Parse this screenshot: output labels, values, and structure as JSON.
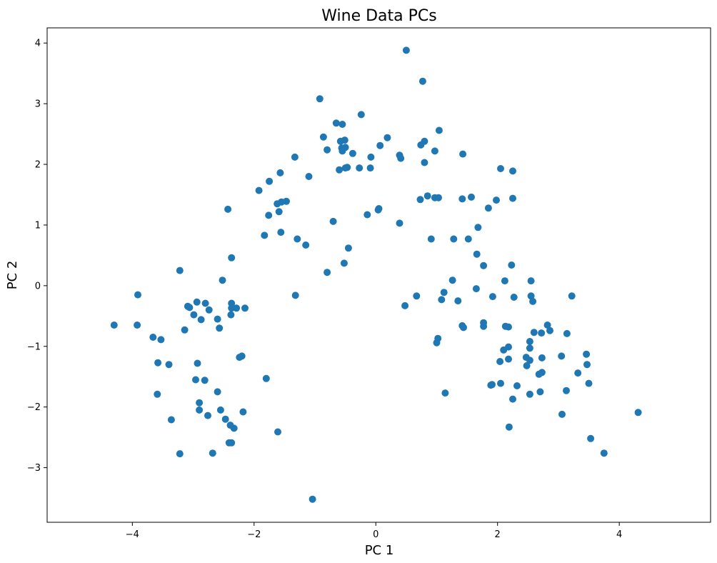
{
  "chart_data": {
    "type": "scatter",
    "title": "Wine Data PCs",
    "xlabel": "PC 1",
    "ylabel": "PC 2",
    "xlim": [
      -5.4,
      5.5
    ],
    "ylim": [
      -3.9,
      4.25
    ],
    "xticks": [
      -4,
      -2,
      0,
      2,
      4
    ],
    "yticks": [
      -3,
      -2,
      -1,
      0,
      1,
      2,
      3,
      4
    ],
    "grid": false,
    "marker_color": "#1f77b4",
    "points": [
      {
        "x": 0.5,
        "y": 3.88
      },
      {
        "x": 0.77,
        "y": 3.37
      },
      {
        "x": -0.92,
        "y": 3.08
      },
      {
        "x": -0.24,
        "y": 2.82
      },
      {
        "x": -0.65,
        "y": 2.68
      },
      {
        "x": -0.55,
        "y": 2.66
      },
      {
        "x": 1.04,
        "y": 2.56
      },
      {
        "x": -0.86,
        "y": 2.45
      },
      {
        "x": 0.19,
        "y": 2.44
      },
      {
        "x": -0.51,
        "y": 2.4
      },
      {
        "x": -0.58,
        "y": 2.38
      },
      {
        "x": 0.8,
        "y": 2.38
      },
      {
        "x": 0.74,
        "y": 2.32
      },
      {
        "x": 0.07,
        "y": 2.31
      },
      {
        "x": -0.5,
        "y": 2.28
      },
      {
        "x": -0.56,
        "y": 2.27
      },
      {
        "x": -0.8,
        "y": 2.24
      },
      {
        "x": -0.55,
        "y": 2.22
      },
      {
        "x": 0.97,
        "y": 2.22
      },
      {
        "x": -0.38,
        "y": 2.18
      },
      {
        "x": 1.43,
        "y": 2.17
      },
      {
        "x": 0.39,
        "y": 2.15
      },
      {
        "x": -1.33,
        "y": 2.12
      },
      {
        "x": -0.08,
        "y": 2.12
      },
      {
        "x": 0.41,
        "y": 2.1
      },
      {
        "x": 0.8,
        "y": 2.03
      },
      {
        "x": -0.47,
        "y": 1.95
      },
      {
        "x": -0.5,
        "y": 1.94
      },
      {
        "x": -0.27,
        "y": 1.94
      },
      {
        "x": -0.09,
        "y": 1.94
      },
      {
        "x": 2.05,
        "y": 1.93
      },
      {
        "x": -0.6,
        "y": 1.91
      },
      {
        "x": 2.25,
        "y": 1.89
      },
      {
        "x": -1.57,
        "y": 1.86
      },
      {
        "x": -1.1,
        "y": 1.8
      },
      {
        "x": -1.75,
        "y": 1.72
      },
      {
        "x": -1.92,
        "y": 1.57
      },
      {
        "x": 0.85,
        "y": 1.48
      },
      {
        "x": 1.57,
        "y": 1.46
      },
      {
        "x": 0.97,
        "y": 1.45
      },
      {
        "x": 1.03,
        "y": 1.45
      },
      {
        "x": 2.25,
        "y": 1.44
      },
      {
        "x": 1.42,
        "y": 1.43
      },
      {
        "x": 0.73,
        "y": 1.42
      },
      {
        "x": 1.98,
        "y": 1.41
      },
      {
        "x": -1.47,
        "y": 1.39
      },
      {
        "x": -1.55,
        "y": 1.38
      },
      {
        "x": -1.62,
        "y": 1.35
      },
      {
        "x": 1.85,
        "y": 1.28
      },
      {
        "x": -2.43,
        "y": 1.26
      },
      {
        "x": 0.05,
        "y": 1.27
      },
      {
        "x": 0.04,
        "y": 1.25
      },
      {
        "x": -1.59,
        "y": 1.22
      },
      {
        "x": -0.14,
        "y": 1.17
      },
      {
        "x": -1.76,
        "y": 1.16
      },
      {
        "x": -0.7,
        "y": 1.06
      },
      {
        "x": 0.39,
        "y": 1.03
      },
      {
        "x": 1.68,
        "y": 0.96
      },
      {
        "x": -1.56,
        "y": 0.88
      },
      {
        "x": -1.83,
        "y": 0.83
      },
      {
        "x": -1.29,
        "y": 0.77
      },
      {
        "x": 0.91,
        "y": 0.77
      },
      {
        "x": 1.28,
        "y": 0.77
      },
      {
        "x": 1.52,
        "y": 0.77
      },
      {
        "x": -1.15,
        "y": 0.67
      },
      {
        "x": -0.45,
        "y": 0.62
      },
      {
        "x": 1.66,
        "y": 0.52
      },
      {
        "x": -2.37,
        "y": 0.46
      },
      {
        "x": -0.52,
        "y": 0.37
      },
      {
        "x": 1.77,
        "y": 0.33
      },
      {
        "x": 2.23,
        "y": 0.34
      },
      {
        "x": -3.22,
        "y": 0.25
      },
      {
        "x": -0.8,
        "y": 0.22
      },
      {
        "x": -2.52,
        "y": 0.09
      },
      {
        "x": 1.26,
        "y": 0.09
      },
      {
        "x": 2.12,
        "y": 0.08
      },
      {
        "x": 2.55,
        "y": 0.08
      },
      {
        "x": 1.65,
        "y": -0.05
      },
      {
        "x": 1.12,
        "y": -0.11
      },
      {
        "x": -3.91,
        "y": -0.15
      },
      {
        "x": -1.32,
        "y": -0.16
      },
      {
        "x": 0.67,
        "y": -0.17
      },
      {
        "x": 1.92,
        "y": -0.18
      },
      {
        "x": 2.55,
        "y": -0.17
      },
      {
        "x": 3.22,
        "y": -0.17
      },
      {
        "x": 2.27,
        "y": -0.19
      },
      {
        "x": 1.08,
        "y": -0.23
      },
      {
        "x": 1.35,
        "y": -0.25
      },
      {
        "x": 2.58,
        "y": -0.26
      },
      {
        "x": -2.94,
        "y": -0.27
      },
      {
        "x": -2.37,
        "y": -0.29
      },
      {
        "x": -2.8,
        "y": -0.29
      },
      {
        "x": 0.48,
        "y": -0.33
      },
      {
        "x": -3.09,
        "y": -0.34
      },
      {
        "x": -3.06,
        "y": -0.36
      },
      {
        "x": -2.29,
        "y": -0.37
      },
      {
        "x": -2.15,
        "y": -0.37
      },
      {
        "x": -2.37,
        "y": -0.37
      },
      {
        "x": -2.74,
        "y": -0.4
      },
      {
        "x": -2.38,
        "y": -0.48
      },
      {
        "x": -2.99,
        "y": -0.48
      },
      {
        "x": -2.87,
        "y": -0.56
      },
      {
        "x": -2.6,
        "y": -0.55
      },
      {
        "x": -3.92,
        "y": -0.65
      },
      {
        "x": -4.3,
        "y": -0.65
      },
      {
        "x": 1.77,
        "y": -0.61
      },
      {
        "x": 2.82,
        "y": -0.65
      },
      {
        "x": 1.42,
        "y": -0.66
      },
      {
        "x": 1.77,
        "y": -0.67
      },
      {
        "x": 2.13,
        "y": -0.67
      },
      {
        "x": 2.18,
        "y": -0.68
      },
      {
        "x": 1.44,
        "y": -0.69
      },
      {
        "x": -2.57,
        "y": -0.7
      },
      {
        "x": -3.14,
        "y": -0.73
      },
      {
        "x": 2.86,
        "y": -0.74
      },
      {
        "x": 2.6,
        "y": -0.77
      },
      {
        "x": 2.72,
        "y": -0.78
      },
      {
        "x": 3.14,
        "y": -0.79
      },
      {
        "x": -3.66,
        "y": -0.85
      },
      {
        "x": 1.02,
        "y": -0.87
      },
      {
        "x": -3.53,
        "y": -0.89
      },
      {
        "x": 2.53,
        "y": -0.92
      },
      {
        "x": 1.0,
        "y": -0.94
      },
      {
        "x": 2.18,
        "y": -1.01
      },
      {
        "x": 2.53,
        "y": -1.03
      },
      {
        "x": 2.1,
        "y": -1.06
      },
      {
        "x": 3.46,
        "y": -1.13
      },
      {
        "x": -2.2,
        "y": -1.16
      },
      {
        "x": -2.24,
        "y": -1.18
      },
      {
        "x": 3.05,
        "y": -1.16
      },
      {
        "x": 2.47,
        "y": -1.18
      },
      {
        "x": 2.73,
        "y": -1.19
      },
      {
        "x": 2.18,
        "y": -1.21
      },
      {
        "x": 2.53,
        "y": -1.23
      },
      {
        "x": 2.04,
        "y": -1.25
      },
      {
        "x": -3.58,
        "y": -1.27
      },
      {
        "x": -2.93,
        "y": -1.28
      },
      {
        "x": 3.47,
        "y": -1.3
      },
      {
        "x": -3.4,
        "y": -1.3
      },
      {
        "x": 2.48,
        "y": -1.32
      },
      {
        "x": 2.73,
        "y": -1.43
      },
      {
        "x": 3.32,
        "y": -1.44
      },
      {
        "x": 2.68,
        "y": -1.46
      },
      {
        "x": -1.8,
        "y": -1.53
      },
      {
        "x": -2.96,
        "y": -1.55
      },
      {
        "x": -2.81,
        "y": -1.56
      },
      {
        "x": 3.5,
        "y": -1.61
      },
      {
        "x": 2.05,
        "y": -1.61
      },
      {
        "x": 1.91,
        "y": -1.63
      },
      {
        "x": 1.89,
        "y": -1.64
      },
      {
        "x": 2.32,
        "y": -1.65
      },
      {
        "x": 3.13,
        "y": -1.73
      },
      {
        "x": -2.6,
        "y": -1.75
      },
      {
        "x": 2.7,
        "y": -1.75
      },
      {
        "x": 1.14,
        "y": -1.77
      },
      {
        "x": -3.59,
        "y": -1.79
      },
      {
        "x": 2.53,
        "y": -1.79
      },
      {
        "x": 2.25,
        "y": -1.87
      },
      {
        "x": -2.9,
        "y": -1.93
      },
      {
        "x": -2.55,
        "y": -2.05
      },
      {
        "x": -2.9,
        "y": -2.05
      },
      {
        "x": -2.18,
        "y": -2.08
      },
      {
        "x": 4.31,
        "y": -2.09
      },
      {
        "x": 3.06,
        "y": -2.12
      },
      {
        "x": -2.76,
        "y": -2.14
      },
      {
        "x": -2.47,
        "y": -2.2
      },
      {
        "x": -3.36,
        "y": -2.21
      },
      {
        "x": -2.39,
        "y": -2.3
      },
      {
        "x": -2.33,
        "y": -2.35
      },
      {
        "x": 2.19,
        "y": -2.33
      },
      {
        "x": -1.61,
        "y": -2.41
      },
      {
        "x": 3.53,
        "y": -2.52
      },
      {
        "x": -2.41,
        "y": -2.59
      },
      {
        "x": -2.37,
        "y": -2.59
      },
      {
        "x": -3.22,
        "y": -2.77
      },
      {
        "x": -2.68,
        "y": -2.76
      },
      {
        "x": 3.75,
        "y": -2.76
      },
      {
        "x": -1.04,
        "y": -3.52
      }
    ]
  }
}
